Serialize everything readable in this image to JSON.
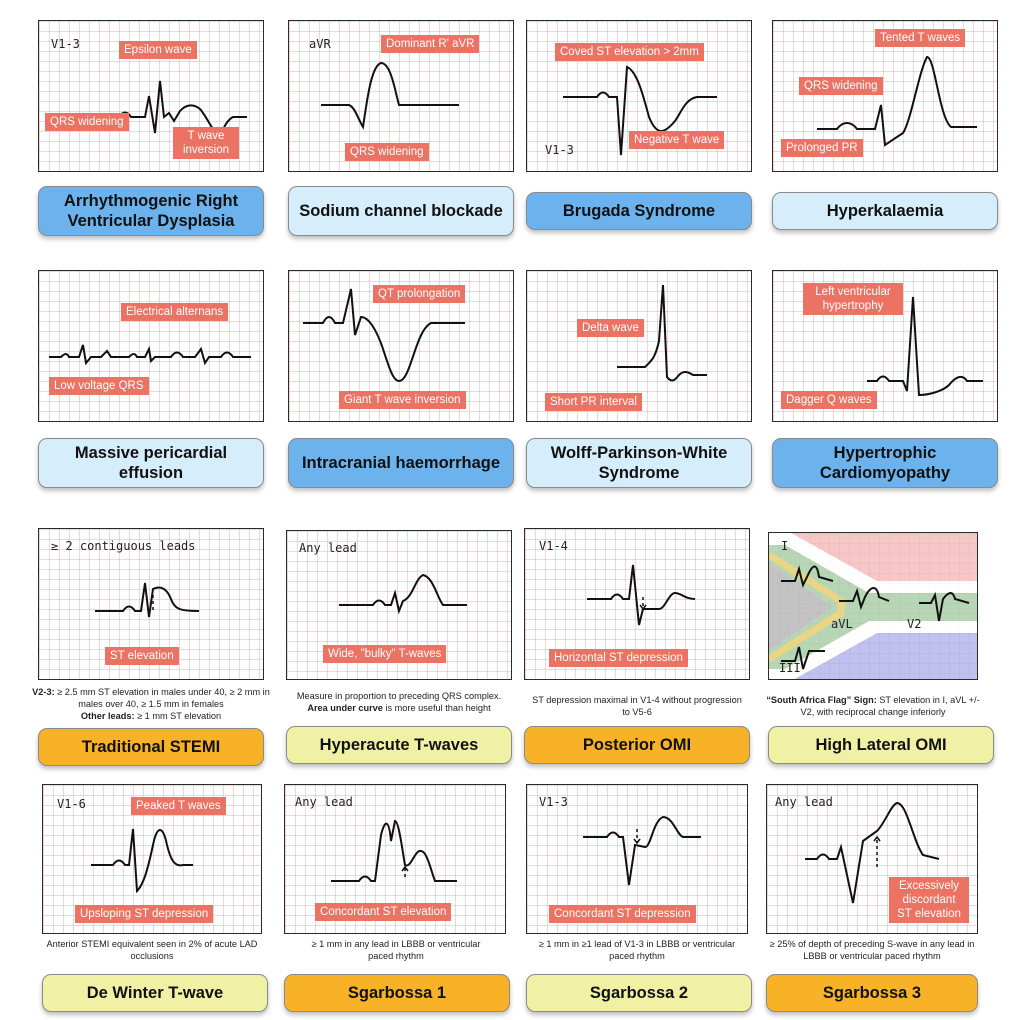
{
  "cards": [
    {
      "id": "arvd",
      "lead": "V1-3",
      "annotations": [
        "Epsilon wave",
        "QRS widening",
        "T wave inversion"
      ],
      "title": "Arrhythmogenic Right Ventricular Dysplasia",
      "title_color": "#6cb2ec"
    },
    {
      "id": "sodium",
      "lead": "aVR",
      "annotations": [
        "Dominant R' aVR",
        "QRS widening"
      ],
      "title": "Sodium channel blockade",
      "title_color": "#d6eefb"
    },
    {
      "id": "brugada",
      "lead": "V1-3",
      "annotations": [
        "Coved ST elevation > 2mm",
        "Negative T wave"
      ],
      "title": "Brugada Syndrome",
      "title_color": "#6cb2ec"
    },
    {
      "id": "hyperk",
      "lead": "",
      "annotations": [
        "Tented T waves",
        "QRS widening",
        "Prolonged PR"
      ],
      "title": "Hyperkalaemia",
      "title_color": "#d6eefb"
    },
    {
      "id": "effusion",
      "lead": "",
      "annotations": [
        "Electrical alternans",
        "Low voltage QRS"
      ],
      "title": "Massive pericardial effusion",
      "title_color": "#d6eefb"
    },
    {
      "id": "ich",
      "lead": "",
      "annotations": [
        "QT prolongation",
        "Giant T wave inversion"
      ],
      "title": "Intracranial haemorrhage",
      "title_color": "#6cb2ec"
    },
    {
      "id": "wpw",
      "lead": "",
      "annotations": [
        "Delta wave",
        "Short PR interval"
      ],
      "title": "Wolff-Parkinson-White Syndrome",
      "title_color": "#d6eefb"
    },
    {
      "id": "hcm",
      "lead": "",
      "annotations": [
        "Left ventricular hypertrophy",
        "Dagger Q waves"
      ],
      "title": "Hypertrophic Cardiomyopathy",
      "title_color": "#6cb2ec"
    },
    {
      "id": "stemi",
      "lead": "≥ 2 contiguous leads",
      "annotations": [
        "ST elevation"
      ],
      "note_parts": [
        "V2-3:",
        " ≥ 2.5 mm ST elevation in males under 40, ≥ 2 mm in males over 40, ≥ 1.5 mm in females",
        "Other leads:",
        " ≥ 1 mm ST elevation"
      ],
      "title": "Traditional STEMI",
      "title_color": "#f8b227"
    },
    {
      "id": "hyperacute",
      "lead": "Any lead",
      "annotations": [
        "Wide, \"bulky\" T-waves"
      ],
      "note_parts": [
        "Measure in proportion to preceding QRS complex.",
        "Area under curve",
        " is more useful than height"
      ],
      "title": "Hyperacute T-waves",
      "title_color": "#f1f1a6"
    },
    {
      "id": "posterior",
      "lead": "V1-4",
      "annotations": [
        "Horizontal ST depression"
      ],
      "note_parts": [
        "ST depression maximal in V1-4 without progression to V5-6"
      ],
      "title": "Posterior OMI",
      "title_color": "#f8b227"
    },
    {
      "id": "highlateral",
      "lead": "I",
      "lead2": "aVL",
      "lead3": "V2",
      "lead4": "III",
      "annotations": [],
      "note_parts": [
        "“South Africa Flag” Sign:",
        " ST elevation in I, aVL +/- V2, with reciprocal change inferiorly"
      ],
      "title": "High Lateral OMI",
      "title_color": "#f1f1a6"
    },
    {
      "id": "dewinter",
      "lead": "V1-6",
      "annotations": [
        "Peaked T waves",
        "Upsloping ST depression"
      ],
      "note_parts": [
        "Anterior STEMI equivalent seen in 2% of acute LAD occlusions"
      ],
      "title": "De Winter T-wave",
      "title_color": "#f1f1a6"
    },
    {
      "id": "sgarbossa1",
      "lead": "Any lead",
      "annotations": [
        "Concordant ST elevation"
      ],
      "note_parts": [
        "≥ 1 mm in any lead in LBBB or ventricular paced rhythm"
      ],
      "title": "Sgarbossa 1",
      "title_color": "#f8b227"
    },
    {
      "id": "sgarbossa2",
      "lead": "V1-3",
      "annotations": [
        "Concordant ST depression"
      ],
      "note_parts": [
        "≥ 1 mm in ≥1 lead of V1-3 in LBBB or ventricular paced rhythm"
      ],
      "title": "Sgarbossa 2",
      "title_color": "#f1f1a6"
    },
    {
      "id": "sgarbossa3",
      "lead": "Any lead",
      "annotations": [
        "Excessively discordant ST elevation"
      ],
      "note_parts": [
        "≥ 25% of depth of preceding S-wave in any lead in LBBB or ventricular paced rhythm"
      ],
      "title": "Sgarbossa 3",
      "title_color": "#f8b227"
    }
  ]
}
